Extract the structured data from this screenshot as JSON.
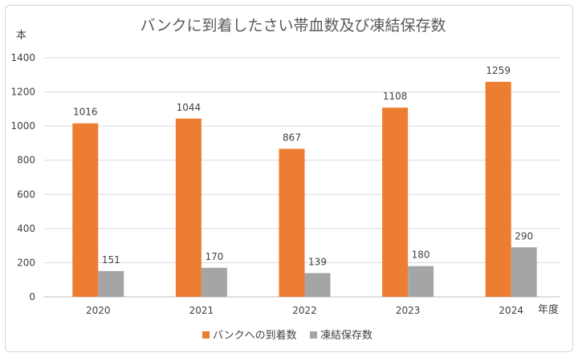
{
  "chart_data": {
    "type": "bar",
    "title": "バンクに到着したさい帯血数及び凍結保存数",
    "ylabel": "本",
    "xlabel": "年度",
    "categories": [
      "2020",
      "2021",
      "2022",
      "2023",
      "2024"
    ],
    "series": [
      {
        "name": "バンクへの到着数",
        "color": "#ED7D31",
        "values": [
          1016,
          1044,
          867,
          1108,
          1259
        ]
      },
      {
        "name": "凍結保存数",
        "color": "#A5A5A5",
        "values": [
          151,
          170,
          139,
          180,
          290
        ]
      }
    ],
    "ylim": [
      0,
      1400
    ],
    "yticks": [
      0,
      200,
      400,
      600,
      800,
      1000,
      1200,
      1400
    ],
    "grid": true,
    "legend_position": "bottom"
  }
}
